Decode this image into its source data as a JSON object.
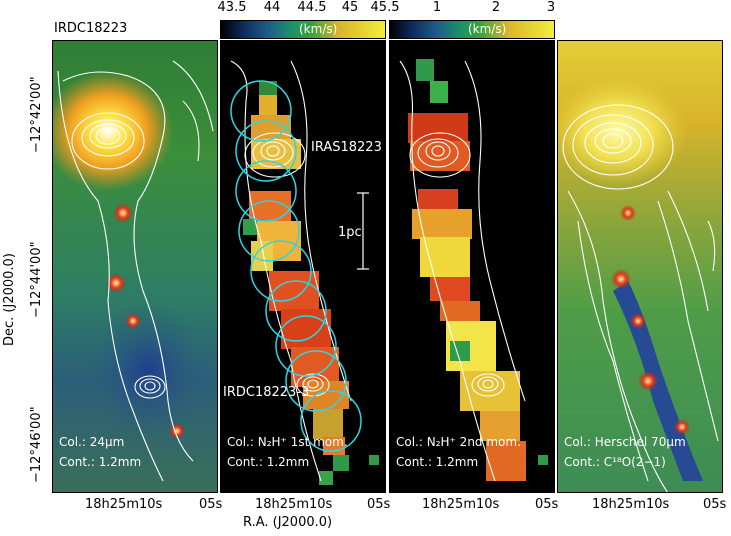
{
  "title": "IRDC18223",
  "colorbars": [
    {
      "ticks": [
        "43.5",
        "44",
        "44.5",
        "45",
        "45.5"
      ],
      "unit": "(km/s)"
    },
    {
      "ticks": [
        "1",
        "2",
        "3"
      ],
      "unit": "(km/s)"
    }
  ],
  "panels": [
    {
      "col": "Col.: 24μm",
      "cont": "Cont.: 1.2mm"
    },
    {
      "col": "Col.: N₂H⁺ 1st mom.",
      "cont": "Cont.: 1.2mm"
    },
    {
      "col": "Col.: N₂H⁺ 2nd mom.",
      "cont": "Cont.: 1.2mm"
    },
    {
      "col": "Col.: Herschel 70μm",
      "cont": "Cont.: C¹⁸O(2−1)"
    }
  ],
  "annotations": {
    "source1": "IRAS18223",
    "source2": "IRDC18223-3",
    "scale": "1pc"
  },
  "x_ticks": [
    "18h25m10s",
    "05s",
    "18h25m10s",
    "05s",
    "18h25m10s",
    "05s",
    "18h25m10s",
    "05s"
  ],
  "x_label": "R.A. (J2000.0)",
  "y_ticks": [
    "−12°42'00\"",
    "−12°44'00\"",
    "−12°46'00\""
  ],
  "y_label": "Dec. (J2000.0)"
}
